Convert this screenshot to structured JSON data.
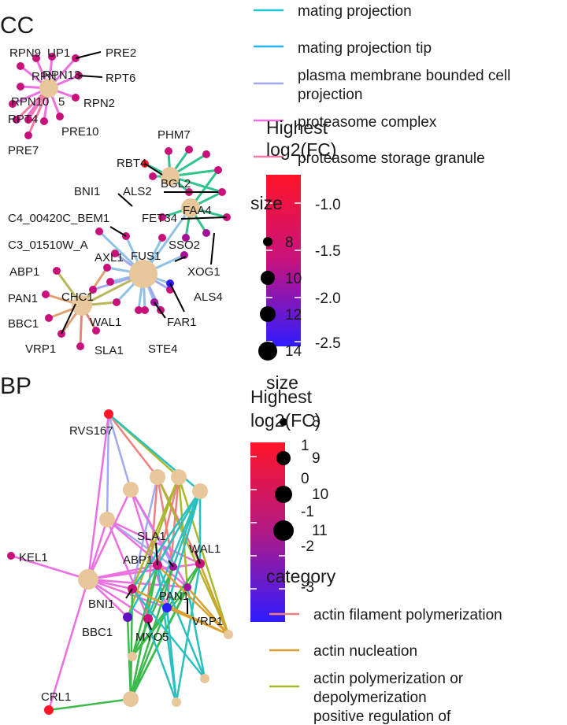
{
  "cc": {
    "panel_label": "CC",
    "legend_title": [
      "Highest",
      "log2(FC)"
    ],
    "colorbar_ticks": [
      "-1.0",
      "-1.5",
      "-2.0",
      "-2.5"
    ],
    "size_title": "size",
    "size_values": [
      "8",
      "10",
      "12",
      "14"
    ],
    "categories": [
      {
        "label": [
          "mating projection"
        ],
        "color": "#1fc6d6"
      },
      {
        "label": [
          "mating projection tip"
        ],
        "color": "#27b6f0"
      },
      {
        "label": [
          "plasma membrane bounded cell",
          "projection"
        ],
        "color": "#a3a8f2"
      },
      {
        "label": [
          "proteasome complex"
        ],
        "color": "#ec70e2"
      },
      {
        "label": [
          "proteasome storage granule"
        ],
        "color": "#f17aa8"
      }
    ],
    "gene_labels": [
      "RPN9",
      "UP1",
      "PRE2",
      "RPN13",
      "RPT6",
      "RPN",
      "RPN2",
      "RPN10",
      "5",
      "RPT4",
      "PRE10",
      "PRE7",
      "PHM7",
      "RBT4",
      "BGL2",
      "ALS2",
      "BNI1",
      "FAA4",
      "FET34",
      "C4_00420C_BEM1",
      "SSO2",
      "C3_01510W_A",
      "AXL1",
      "FUS1",
      "XOG1",
      "ABP1",
      "ALS4",
      "CHC1",
      "PAN1",
      "FAR1",
      "WAL1",
      "BBC1",
      "STE4",
      "VRP1",
      "SLA1"
    ]
  },
  "bp": {
    "panel_label": "BP",
    "legend_title": [
      "Highest",
      "log2(FC)"
    ],
    "colorbar_ticks": [
      "1",
      "0",
      "-1",
      "-2",
      "-3"
    ],
    "size_title": "size",
    "size_values": [
      "8",
      "9",
      "10",
      "11"
    ],
    "category_title": "category",
    "categories": [
      {
        "label": [
          "actin filament polymerization"
        ],
        "color": "#f07f7f"
      },
      {
        "label": [
          "actin nucleation"
        ],
        "color": "#d9a030"
      },
      {
        "label": [
          "actin polymerization or",
          "depolymerization"
        ],
        "color": "#a9b82c"
      },
      {
        "label": [
          "positive regulation of"
        ],
        "color": "#3cba4c"
      }
    ],
    "gene_labels": [
      "RVS167",
      "KEL1",
      "SLA1",
      "WAL1",
      "ABP1",
      "PAN1",
      "BNI1",
      "VRP1",
      "BBC1",
      "MYO5",
      "CRL1"
    ]
  }
}
